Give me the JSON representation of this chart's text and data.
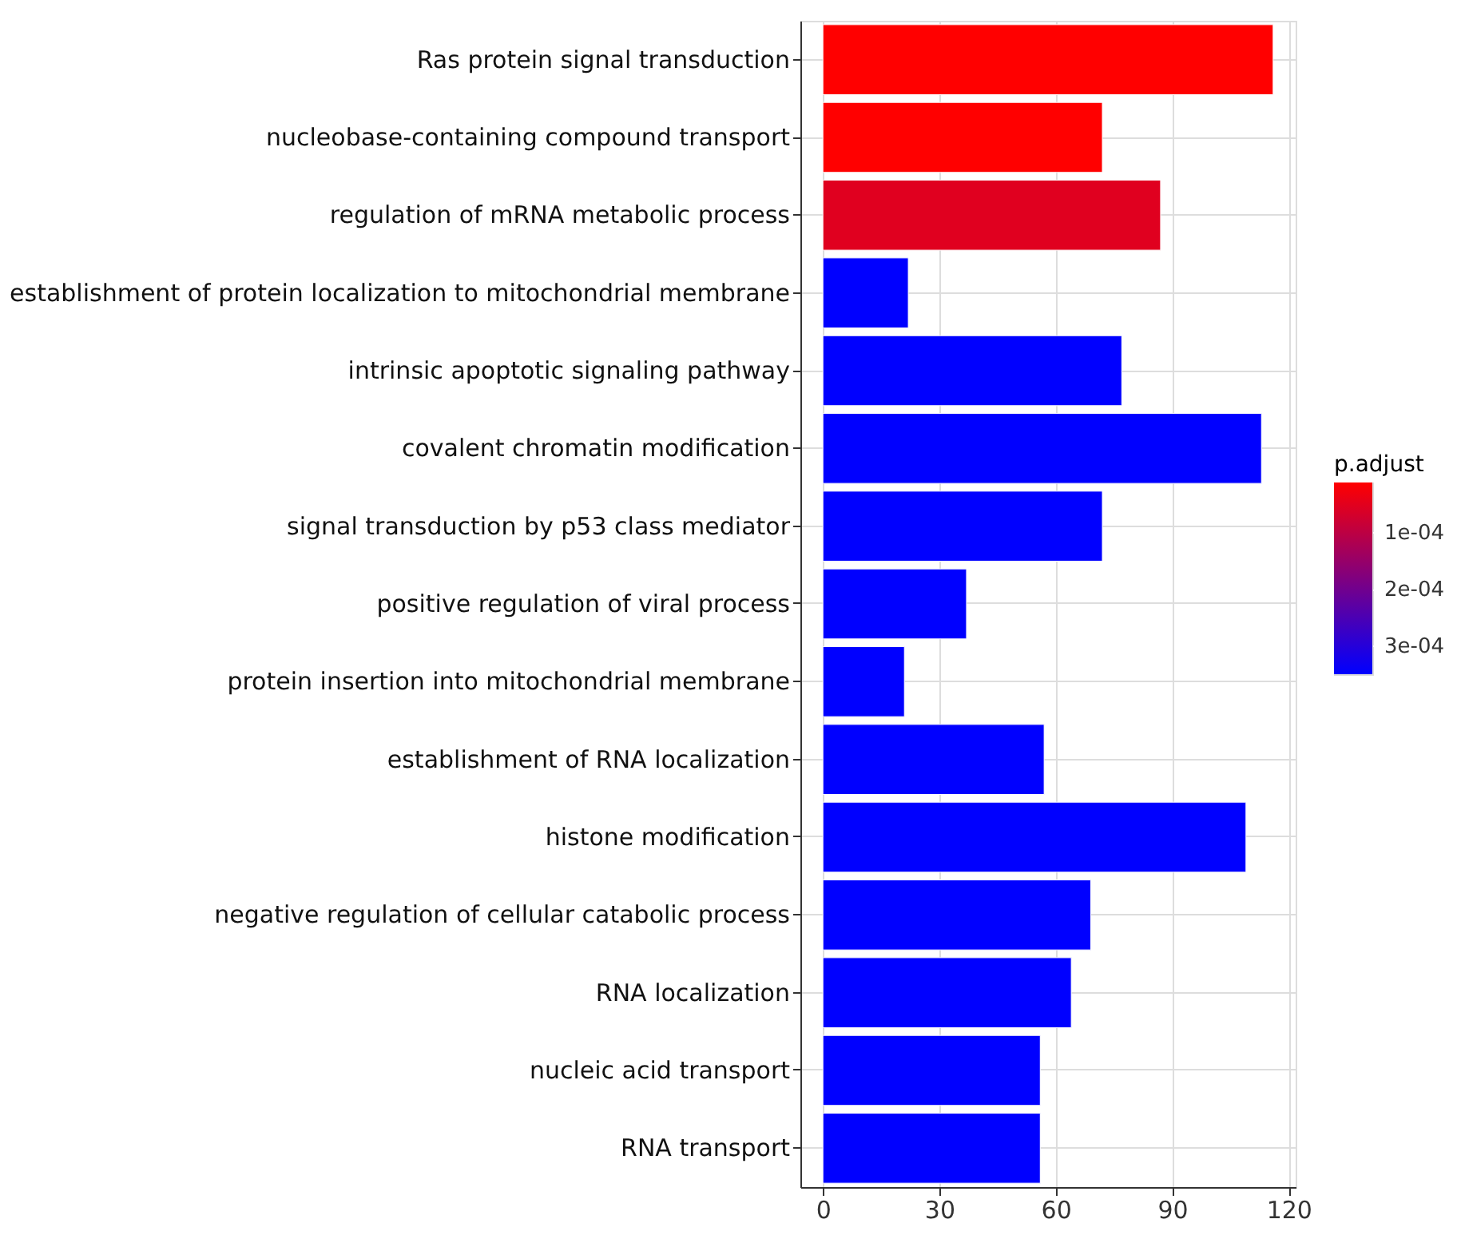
{
  "chart_data": {
    "type": "bar",
    "orientation": "horizontal",
    "categories": [
      "Ras protein signal transduction",
      "nucleobase-containing compound transport",
      "regulation of mRNA metabolic process",
      "establishment of protein localization to mitochondrial membrane",
      "intrinsic apoptotic signaling pathway",
      "covalent chromatin modification",
      "signal transduction by p53 class mediator",
      "positive regulation of viral process",
      "protein insertion into mitochondrial membrane",
      "establishment of RNA localization",
      "histone modification",
      "negative regulation of cellular catabolic process",
      "RNA localization",
      "nucleic acid transport",
      "RNA transport"
    ],
    "values": [
      116,
      72,
      87,
      22,
      77,
      113,
      72,
      37,
      21,
      57,
      109,
      69,
      64,
      56,
      56
    ],
    "cvalues": [
      1.2e-05,
      1.2e-05,
      5.3e-05,
      0.00035,
      0.00035,
      0.00035,
      0.00035,
      0.00035,
      0.00035,
      0.00035,
      0.00035,
      0.00035,
      0.00035,
      0.00035,
      0.00035
    ],
    "colors": [
      "#ff0000",
      "#ff0000",
      "#e0001f",
      "#0000ff",
      "#0000ff",
      "#0000ff",
      "#0000ff",
      "#0000ff",
      "#0000ff",
      "#0000ff",
      "#0000ff",
      "#0000ff",
      "#0000ff",
      "#0000ff",
      "#0000ff"
    ],
    "clabel": "p.adjust",
    "clim": [
      1.2e-05,
      0.00035
    ],
    "cticks": [
      {
        "value": 0.0001,
        "label": "1e-04"
      },
      {
        "value": 0.0002,
        "label": "2e-04"
      },
      {
        "value": 0.0003,
        "label": "3e-04"
      }
    ],
    "xlim": [
      -5.8,
      121.8
    ],
    "xticks": [
      0,
      30,
      60,
      90,
      120
    ],
    "grid": true
  }
}
